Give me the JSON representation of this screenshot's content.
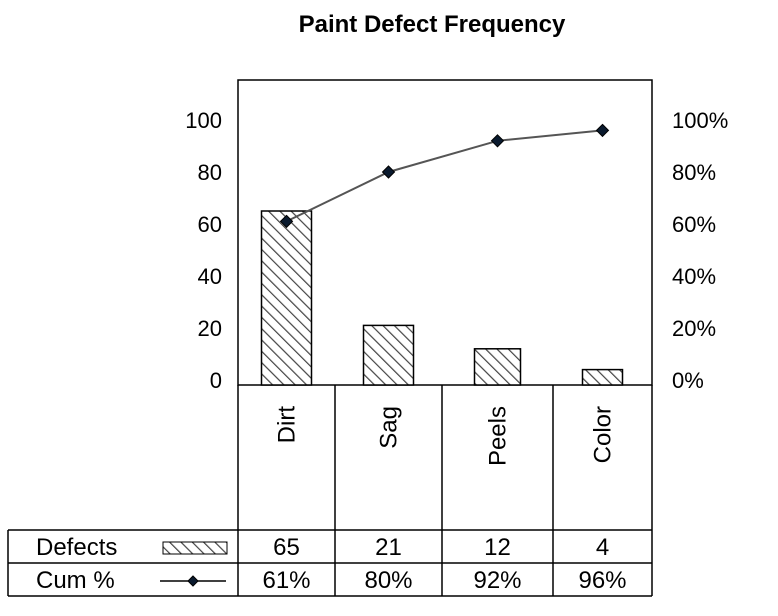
{
  "chart_data": {
    "type": "bar",
    "title": "Paint Defect Frequency",
    "categories": [
      "Dirt",
      "Sag",
      "Peels",
      "Color"
    ],
    "series": [
      {
        "name": "Defects",
        "type": "bar",
        "axis": "left",
        "values": [
          65,
          21,
          12,
          4
        ],
        "pattern": "diagonal-hatch"
      },
      {
        "name": "Cum %",
        "type": "line",
        "axis": "right",
        "values": [
          61,
          80,
          92,
          96
        ],
        "marker": "diamond"
      }
    ],
    "y_left": {
      "min": 0,
      "max": 100,
      "ticks": [
        "0",
        "20",
        "40",
        "60",
        "80",
        "100"
      ]
    },
    "y_right": {
      "min": 0,
      "max": 100,
      "ticks": [
        "0%",
        "20%",
        "40%",
        "60%",
        "80%",
        "100%"
      ]
    },
    "data_table": {
      "rows": [
        {
          "label": "Defects",
          "values": [
            "65",
            "21",
            "12",
            "4"
          ]
        },
        {
          "label": "Cum %",
          "values": [
            "61%",
            "80%",
            "92%",
            "96%"
          ]
        }
      ]
    },
    "grid": false,
    "legend": "in data table",
    "colors": {
      "bar_fill": "#ffffff",
      "hatch": "#444444",
      "line": "#555555",
      "marker": "#0a1a2e"
    }
  }
}
